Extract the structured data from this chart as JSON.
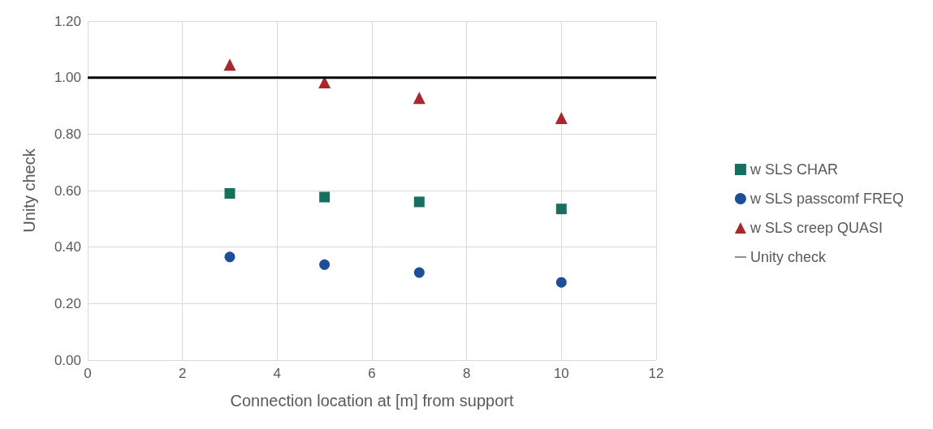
{
  "chart_data": {
    "type": "scatter",
    "xlabel": "Connection location at [m] from support",
    "ylabel": "Unity check",
    "x": [
      3,
      5,
      7,
      10
    ],
    "series": [
      {
        "name": "w SLS CHAR",
        "color": "#17705f",
        "marker": "square",
        "values": [
          0.59,
          0.577,
          0.56,
          0.535
        ]
      },
      {
        "name": "w SLS passcomf FREQ",
        "color": "#1f4e99",
        "marker": "circle",
        "values": [
          0.365,
          0.338,
          0.31,
          0.275
        ]
      },
      {
        "name": "w SLS creep QUASI",
        "color": "#a8262e",
        "marker": "triangle",
        "values": [
          1.046,
          0.983,
          0.928,
          0.857
        ]
      },
      {
        "name": "Unity check",
        "type": "line",
        "color": "#000000",
        "marker": "none",
        "x": [
          0,
          12
        ],
        "values": [
          1,
          1
        ]
      }
    ],
    "xlim": [
      0,
      12
    ],
    "xticks": [
      0,
      2,
      4,
      6,
      8,
      10,
      12
    ],
    "ylim": [
      0,
      1.2
    ],
    "yticks": [
      {
        "value": 0,
        "label": "0.00"
      },
      {
        "value": 0.2,
        "label": "0.20"
      },
      {
        "value": 0.4,
        "label": "0.40"
      },
      {
        "value": 0.6,
        "label": "0.60"
      },
      {
        "value": 0.8,
        "label": "0.80"
      },
      {
        "value": 1,
        "label": "1.00"
      },
      {
        "value": 1.2,
        "label": "1.20"
      }
    ],
    "grid": true,
    "legend": "right"
  }
}
